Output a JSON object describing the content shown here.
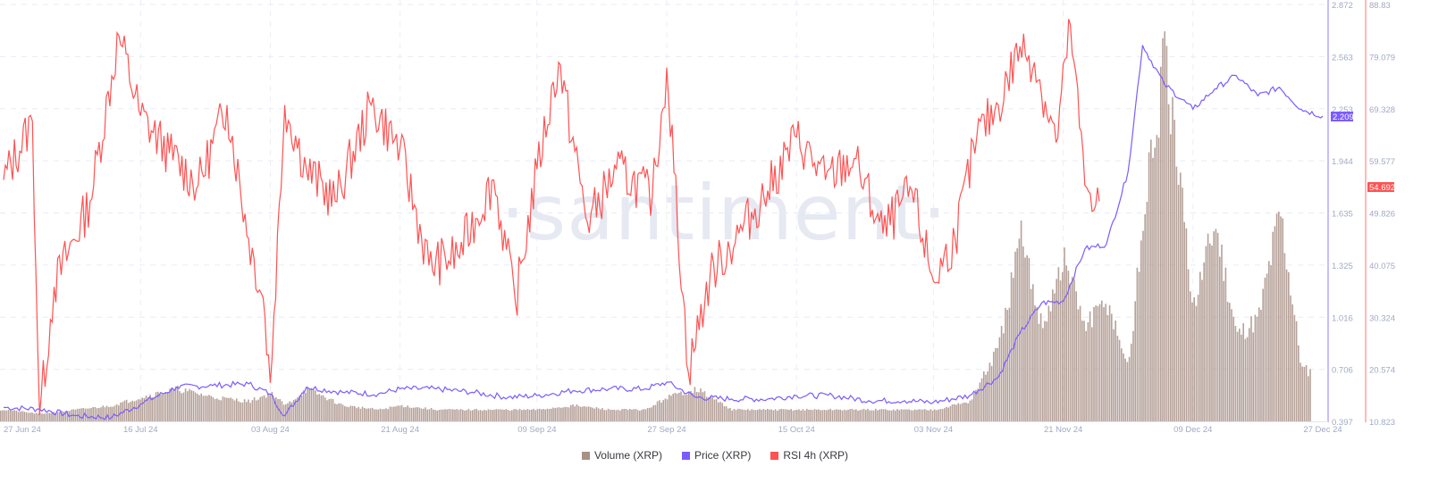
{
  "chart_data": {
    "type": "line",
    "title": "",
    "watermark": "·santiment·",
    "x_range": [
      "27 Jun 24",
      "27 Dec 24"
    ],
    "x_tick_labels": [
      "27 Jun 24",
      "16 Jul 24",
      "03 Aug 24",
      "21 Aug 24",
      "09 Sep 24",
      "27 Sep 24",
      "15 Oct 24",
      "03 Nov 24",
      "21 Nov 24",
      "09 Dec 24",
      "27 Dec 24"
    ],
    "grid": true,
    "legend_position": "bottom",
    "axes": {
      "price": {
        "label": "Price (XRP)",
        "color": "#7b5cff",
        "ticks": [
          "2.872",
          "2.563",
          "2.253",
          "1.944",
          "1.635",
          "1.325",
          "1.016",
          "0.706",
          "0.397"
        ],
        "ylim": [
          0.397,
          2.872
        ],
        "current_value": "2.209"
      },
      "rsi": {
        "label": "RSI 4h (XRP)",
        "color": "#ff5252",
        "ticks": [
          "88.83",
          "79.079",
          "69.328",
          "59.577",
          "49.826",
          "40.075",
          "30.324",
          "20.574",
          "10.823"
        ],
        "ylim": [
          10.823,
          88.83
        ],
        "current_value": "54.692"
      }
    },
    "series": [
      {
        "name": "Volume (XRP)",
        "type": "bar",
        "color": "#a89187",
        "x": [
          "27 Jun 24",
          "02 Jul 24",
          "07 Jul 24",
          "12 Jul 24",
          "16 Jul 24",
          "21 Jul 24",
          "26 Jul 24",
          "31 Jul 24",
          "03 Aug 24",
          "05 Aug 24",
          "08 Aug 24",
          "13 Aug 24",
          "18 Aug 24",
          "21 Aug 24",
          "26 Aug 24",
          "31 Aug 24",
          "05 Sep 24",
          "09 Sep 24",
          "14 Sep 24",
          "19 Sep 24",
          "24 Sep 24",
          "27 Sep 24",
          "01 Oct 24",
          "06 Oct 24",
          "11 Oct 24",
          "15 Oct 24",
          "20 Oct 24",
          "25 Oct 24",
          "30 Oct 24",
          "03 Nov 24",
          "08 Nov 24",
          "12 Nov 24",
          "15 Nov 24",
          "18 Nov 24",
          "21 Nov 24",
          "24 Nov 24",
          "27 Nov 24",
          "30 Nov 24",
          "02 Dec 24",
          "05 Dec 24",
          "09 Dec 24",
          "12 Dec 24",
          "15 Dec 24",
          "18 Dec 24",
          "21 Dec 24",
          "24 Dec 24",
          "27 Dec 24"
        ],
        "values_relative": [
          0.02,
          0.01,
          0.02,
          0.03,
          0.05,
          0.07,
          0.05,
          0.04,
          0.06,
          0.03,
          0.07,
          0.03,
          0.02,
          0.03,
          0.02,
          0.02,
          0.02,
          0.02,
          0.03,
          0.02,
          0.02,
          0.05,
          0.07,
          0.02,
          0.02,
          0.02,
          0.02,
          0.02,
          0.02,
          0.02,
          0.04,
          0.17,
          0.43,
          0.22,
          0.38,
          0.22,
          0.28,
          0.12,
          0.48,
          0.85,
          0.27,
          0.47,
          0.2,
          0.24,
          0.5,
          0.12,
          0.1
        ]
      },
      {
        "name": "Price (XRP)",
        "type": "line",
        "color": "#7b5cff",
        "x": [
          "27 Jun 24",
          "02 Jul 24",
          "07 Jul 24",
          "12 Jul 24",
          "16 Jul 24",
          "21 Jul 24",
          "26 Jul 24",
          "31 Jul 24",
          "03 Aug 24",
          "05 Aug 24",
          "08 Aug 24",
          "13 Aug 24",
          "18 Aug 24",
          "21 Aug 24",
          "26 Aug 24",
          "31 Aug 24",
          "05 Sep 24",
          "09 Sep 24",
          "14 Sep 24",
          "19 Sep 24",
          "24 Sep 24",
          "27 Sep 24",
          "01 Oct 24",
          "06 Oct 24",
          "11 Oct 24",
          "15 Oct 24",
          "20 Oct 24",
          "25 Oct 24",
          "30 Oct 24",
          "03 Nov 24",
          "08 Nov 24",
          "12 Nov 24",
          "15 Nov 24",
          "18 Nov 24",
          "21 Nov 24",
          "24 Nov 24",
          "27 Nov 24",
          "30 Nov 24",
          "02 Dec 24",
          "05 Dec 24",
          "09 Dec 24",
          "12 Dec 24",
          "15 Dec 24",
          "18 Dec 24",
          "21 Dec 24",
          "24 Dec 24",
          "27 Dec 24"
        ],
        "values": [
          0.48,
          0.47,
          0.43,
          0.42,
          0.5,
          0.6,
          0.61,
          0.62,
          0.56,
          0.43,
          0.6,
          0.57,
          0.56,
          0.59,
          0.59,
          0.57,
          0.54,
          0.55,
          0.58,
          0.59,
          0.59,
          0.63,
          0.54,
          0.53,
          0.53,
          0.55,
          0.55,
          0.52,
          0.52,
          0.51,
          0.55,
          0.66,
          0.92,
          1.1,
          1.11,
          1.42,
          1.45,
          1.88,
          2.63,
          2.4,
          2.25,
          2.37,
          2.45,
          2.33,
          2.38,
          2.25,
          2.209
        ]
      },
      {
        "name": "RSI 4h (XRP)",
        "type": "line",
        "color": "#ff5252",
        "x": [
          "27 Jun 24",
          "01 Jul 24",
          "02 Jul 24",
          "04 Jul 24",
          "09 Jul 24",
          "13 Jul 24",
          "16 Jul 24",
          "20 Jul 24",
          "24 Jul 24",
          "28 Jul 24",
          "31 Jul 24",
          "02 Aug 24",
          "03 Aug 24",
          "05 Aug 24",
          "08 Aug 24",
          "12 Aug 24",
          "17 Aug 24",
          "21 Aug 24",
          "25 Aug 24",
          "29 Aug 24",
          "03 Sep 24",
          "06 Sep 24",
          "09 Sep 24",
          "12 Sep 24",
          "16 Sep 24",
          "20 Sep 24",
          "25 Sep 24",
          "27 Sep 24",
          "30 Sep 24",
          "03 Oct 24",
          "07 Oct 24",
          "11 Oct 24",
          "15 Oct 24",
          "19 Oct 24",
          "23 Oct 24",
          "27 Oct 24",
          "31 Oct 24",
          "03 Nov 24",
          "06 Nov 24",
          "09 Nov 24",
          "12 Nov 24",
          "15 Nov 24",
          "17 Nov 24",
          "20 Nov 24",
          "22 Nov 24",
          "24 Nov 24",
          "26 Nov 24"
        ],
        "values": [
          56,
          67,
          12,
          36,
          52,
          83,
          68,
          61,
          55,
          70,
          45,
          34,
          18,
          70,
          58,
          52,
          70,
          62,
          40,
          42,
          56,
          33,
          58,
          78,
          48,
          58,
          53,
          77,
          20,
          38,
          46,
          54,
          64,
          56,
          60,
          46,
          54,
          37,
          45,
          64,
          70,
          81,
          78,
          63,
          85,
          55,
          52
        ]
      }
    ]
  },
  "legend": {
    "items": [
      {
        "label": "Volume (XRP)",
        "color": "#a89187"
      },
      {
        "label": "Price (XRP)",
        "color": "#7b5cff"
      },
      {
        "label": "RSI 4h (XRP)",
        "color": "#ff5252"
      }
    ]
  }
}
